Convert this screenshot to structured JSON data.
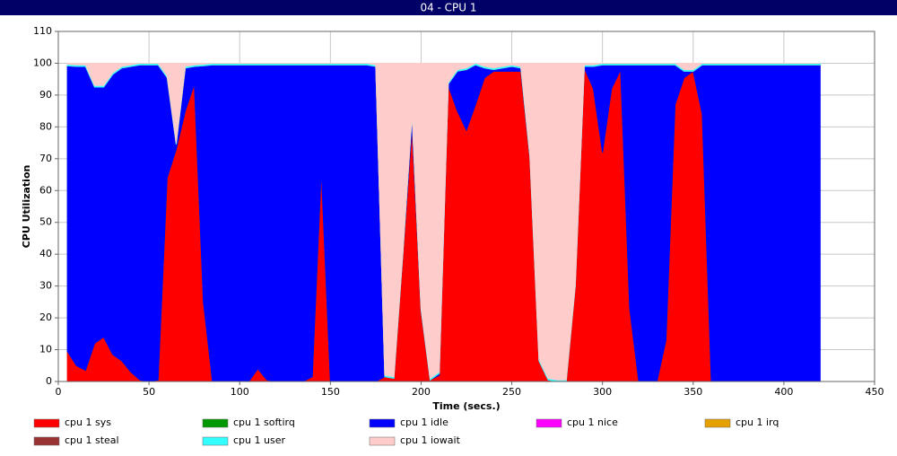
{
  "header": {
    "title": "04 - CPU 1"
  },
  "chart_data": {
    "type": "stacked-area",
    "xlabel": "Time (secs.)",
    "ylabel": "CPU Utilization",
    "x": [
      5,
      10,
      15,
      20,
      25,
      30,
      35,
      40,
      45,
      50,
      55,
      60,
      65,
      70,
      75,
      80,
      85,
      90,
      95,
      100,
      105,
      110,
      115,
      120,
      125,
      130,
      135,
      140,
      145,
      150,
      155,
      160,
      165,
      170,
      175,
      180,
      185,
      190,
      195,
      200,
      205,
      210,
      215,
      220,
      225,
      230,
      235,
      240,
      245,
      250,
      255,
      260,
      265,
      270,
      275,
      280,
      285,
      290,
      295,
      300,
      305,
      310,
      315,
      320,
      325,
      330,
      335,
      340,
      345,
      350,
      355,
      360,
      365,
      370,
      375,
      380,
      385,
      390,
      395,
      400,
      405,
      410,
      415,
      420
    ],
    "xlim": [
      0,
      450
    ],
    "xticks": [
      0,
      50,
      100,
      150,
      200,
      250,
      300,
      350,
      400,
      450
    ],
    "ylim": [
      0,
      110
    ],
    "yticks": [
      0,
      10,
      20,
      30,
      40,
      50,
      60,
      70,
      80,
      90,
      100,
      110
    ],
    "grid": true,
    "series": [
      {
        "name": "cpu 1 sys",
        "color": "#ff0000",
        "values": [
          9.5,
          5,
          3.5,
          12,
          14,
          8.5,
          6.5,
          3,
          0.5,
          0,
          0.5,
          64,
          73,
          85,
          93.5,
          25,
          0,
          0,
          0,
          0,
          0,
          4,
          0.5,
          0,
          0,
          0,
          0,
          1.5,
          66.5,
          0,
          0,
          0,
          0,
          0,
          0,
          1.5,
          1,
          40,
          80,
          22,
          0.5,
          2,
          93,
          85,
          79,
          87,
          95.5,
          97.5,
          97.5,
          97.5,
          97.5,
          70,
          6.5,
          0.5,
          0,
          0,
          30,
          98.5,
          92,
          72,
          92,
          98,
          23,
          0,
          0,
          0,
          13,
          87,
          95.5,
          97.5,
          84,
          0,
          0,
          0,
          0,
          0,
          0,
          0,
          0,
          0,
          0,
          0,
          0,
          0
        ]
      },
      {
        "name": "cpu 1 softirq",
        "color": "#009900",
        "values": [
          0,
          0,
          0,
          0,
          0,
          0,
          0,
          0,
          0,
          0,
          0,
          0,
          0,
          0,
          0,
          0,
          0,
          0,
          0,
          0,
          0,
          0,
          0,
          0,
          0,
          0,
          0,
          0,
          0,
          0,
          0,
          0,
          0,
          0,
          0,
          0,
          0,
          0,
          0,
          0,
          0,
          0,
          0,
          0,
          0,
          0,
          0,
          0,
          0,
          0,
          0,
          0,
          0,
          0,
          0,
          0,
          0,
          0,
          0,
          0,
          0,
          0,
          0,
          0,
          0,
          0,
          0,
          0,
          0,
          0,
          0,
          0,
          0,
          0,
          0,
          0,
          0,
          0,
          0,
          0,
          0,
          0,
          0,
          0
        ]
      },
      {
        "name": "cpu 1 idle",
        "color": "#0000ff",
        "values": [
          89.7,
          94,
          95.5,
          80.5,
          78.5,
          88,
          92,
          96,
          99,
          99.5,
          99,
          31.5,
          1.5,
          13.5,
          5.5,
          74.2,
          99.5,
          99.5,
          99.5,
          99.5,
          99.5,
          95.5,
          99,
          99.5,
          99.5,
          99.5,
          99.5,
          98,
          33,
          99.5,
          99.5,
          99.5,
          99.5,
          99.5,
          99,
          0,
          0,
          0.5,
          3.5,
          0.5,
          0,
          0.5,
          0.5,
          12.5,
          19,
          12.5,
          3,
          0.5,
          1,
          1.5,
          1,
          0.5,
          0,
          0,
          0,
          0,
          0,
          0.5,
          7,
          27.5,
          7.5,
          1.5,
          76.5,
          99.5,
          99.5,
          99.5,
          86.5,
          12.5,
          2,
          0,
          15.5,
          99.5,
          99.5,
          99.5,
          99.5,
          99.5,
          99.5,
          99.5,
          99.5,
          99.5,
          99.5,
          99.5,
          99.5,
          99.5
        ]
      },
      {
        "name": "cpu 1 nice",
        "color": "#ff00ff",
        "values": [
          0,
          0,
          0,
          0,
          0,
          0,
          0,
          0,
          0,
          0,
          0,
          0,
          0,
          0,
          0,
          0,
          0,
          0,
          0,
          0,
          0,
          0,
          0,
          0,
          0,
          0,
          0,
          0,
          0,
          0,
          0,
          0,
          0,
          0,
          0,
          0,
          0,
          0,
          0,
          0,
          0,
          0,
          0,
          0,
          0,
          0,
          0,
          0,
          0,
          0,
          0,
          0,
          0,
          0,
          0,
          0,
          0,
          0,
          0,
          0,
          0,
          0,
          0,
          0,
          0,
          0,
          0,
          0,
          0,
          0,
          0,
          0,
          0,
          0,
          0,
          0,
          0,
          0,
          0,
          0,
          0,
          0,
          0,
          0
        ]
      },
      {
        "name": "cpu 1 irq",
        "color": "#e6a000",
        "values": [
          0,
          0,
          0,
          0,
          0,
          0,
          0,
          0,
          0,
          0,
          0,
          0,
          0,
          0,
          0,
          0,
          0,
          0,
          0,
          0,
          0,
          0,
          0,
          0,
          0,
          0,
          0,
          0,
          0,
          0,
          0,
          0,
          0,
          0,
          0,
          0,
          0,
          0,
          0,
          0,
          0,
          0,
          0,
          0,
          0,
          0,
          0,
          0,
          0,
          0,
          0,
          0,
          0,
          0,
          0,
          0,
          0,
          0,
          0,
          0,
          0,
          0,
          0,
          0,
          0,
          0,
          0,
          0,
          0,
          0,
          0,
          0,
          0,
          0,
          0,
          0,
          0,
          0,
          0,
          0,
          0,
          0,
          0,
          0
        ]
      },
      {
        "name": "cpu 1 steal",
        "color": "#993333",
        "values": [
          0,
          0,
          0,
          0,
          0,
          0,
          0,
          0,
          0,
          0,
          0,
          0,
          0,
          0,
          0,
          0,
          0,
          0,
          0,
          0,
          0,
          0,
          0,
          0,
          0,
          0,
          0,
          0,
          0,
          0,
          0,
          0,
          0,
          0,
          0,
          0,
          0,
          0,
          0,
          0,
          0,
          0,
          0,
          0,
          0,
          0,
          0,
          0,
          0,
          0,
          0,
          0,
          0,
          0,
          0,
          0,
          0,
          0,
          0,
          0,
          0,
          0,
          0,
          0,
          0,
          0,
          0,
          0,
          0,
          0,
          0,
          0,
          0,
          0,
          0,
          0,
          0,
          0,
          0,
          0,
          0,
          0,
          0,
          0
        ]
      },
      {
        "name": "cpu 1 user",
        "color": "#33ffff",
        "values": [
          0.5,
          0.5,
          0.5,
          0.5,
          0.5,
          0.5,
          0.5,
          0.5,
          0.5,
          0.5,
          0.5,
          0.5,
          0.5,
          0.5,
          0.5,
          0.5,
          0.5,
          0.5,
          0.5,
          0.5,
          0.5,
          0.5,
          0.5,
          0.5,
          0.5,
          0.5,
          0.5,
          0.5,
          0.5,
          0.5,
          0.5,
          0.5,
          0.5,
          0.5,
          0.5,
          0.5,
          0.5,
          0.5,
          0.5,
          0.5,
          0.5,
          0.5,
          0.5,
          0.5,
          0.5,
          0.5,
          0.5,
          0.5,
          0.5,
          0.5,
          0.5,
          0.5,
          0.5,
          0.5,
          0.5,
          0.5,
          0.5,
          0.5,
          0.5,
          0.5,
          0.5,
          0.5,
          0.5,
          0.5,
          0.5,
          0.5,
          0.5,
          0.5,
          0.5,
          0.5,
          0.5,
          0.5,
          0.5,
          0.5,
          0.5,
          0.5,
          0.5,
          0.5,
          0.5,
          0.5,
          0.5,
          0.5,
          0.5,
          0.5
        ]
      },
      {
        "name": "cpu 1 iowait",
        "color": "#ffcccc",
        "values": [
          0.3,
          0.5,
          0.5,
          7,
          7,
          3,
          1,
          0.5,
          0,
          0,
          0,
          4,
          25,
          1,
          0.5,
          0.3,
          0,
          0,
          0,
          0,
          0,
          0,
          0,
          0,
          0,
          0,
          0,
          0,
          0,
          0,
          0,
          0,
          0,
          0,
          0.5,
          98,
          98.5,
          59,
          16,
          77,
          99,
          97,
          6,
          2,
          1.5,
          0,
          1,
          1.5,
          1,
          0.5,
          1,
          29,
          93,
          99,
          99.5,
          99.5,
          69.5,
          0.5,
          0.5,
          0,
          0,
          0,
          0,
          0,
          0,
          0,
          0,
          0,
          2,
          2,
          0,
          0,
          0,
          0,
          0,
          0,
          0,
          0,
          0,
          0,
          0,
          0,
          0,
          0
        ]
      }
    ]
  }
}
